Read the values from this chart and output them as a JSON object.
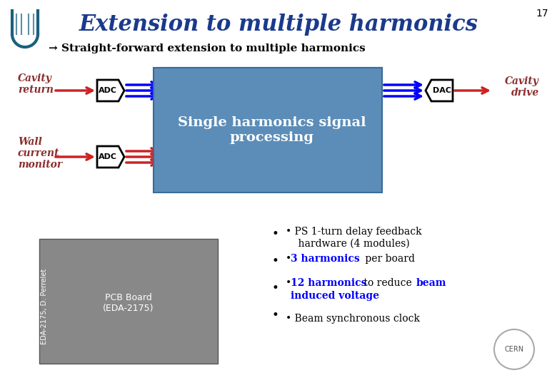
{
  "title": "Extension to multiple harmonics",
  "slide_number": "17",
  "subtitle": "→ Straight-forward extension to multiple harmonics",
  "title_color": "#1a3a8c",
  "subtitle_color": "#000000",
  "bg_color": "#ffffff",
  "label_color": "#8b2e2e",
  "box_fill_colors": [
    "#5b8db8",
    "#4a7ba8",
    "#3a6b98"
  ],
  "box_text": "Single harmonics signal\nprocessing",
  "box_text_color": "#ffffff",
  "adc_label": "ADC",
  "dac_label": "DAC",
  "cavity_return": "Cavity\nreturn",
  "wall_current": "Wall\ncurrent\nmonitor",
  "cavity_drive": "Cavity\ndrive",
  "blue_arrow_color": "#0000ff",
  "red_arrow_color": "#cc2222",
  "bullet_points": [
    {
      "text": "PS 1-turn delay feedback\nhardware (4 modules)",
      "colors": [
        "black"
      ]
    },
    {
      "text": "3 harmonics per board",
      "colors": [
        "blue",
        "black"
      ]
    },
    {
      "text": "12 harmonics to reduce beam\ninduced voltage",
      "colors": [
        "blue",
        "black",
        "blue"
      ]
    },
    {
      "text": "Beam synchronous clock",
      "colors": [
        "black"
      ]
    }
  ]
}
